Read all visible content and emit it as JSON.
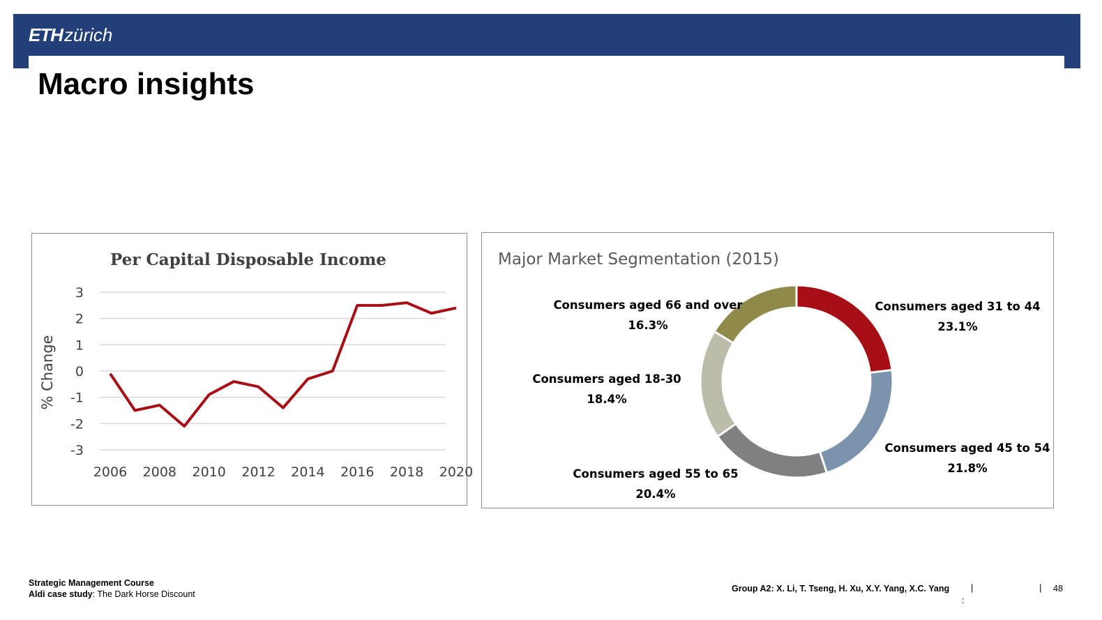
{
  "header": {
    "logo_bold": "ETH",
    "logo_light": "zürich",
    "brand_color": "#223f7a"
  },
  "page_title": "Macro insights",
  "chart_data": [
    {
      "type": "line",
      "title": "Per Capital Disposable Income",
      "xlabel": "",
      "ylabel": "% Change",
      "x": [
        2006,
        2007,
        2008,
        2009,
        2010,
        2011,
        2012,
        2013,
        2014,
        2015,
        2016,
        2017,
        2018,
        2019,
        2020
      ],
      "series": [
        {
          "values": [
            -0.1,
            -1.5,
            -1.3,
            -2.1,
            -0.9,
            -0.4,
            -0.6,
            -1.4,
            -0.3,
            0.0,
            2.5,
            2.5,
            2.6,
            2.2,
            2.4
          ],
          "color": "#a50f15"
        }
      ],
      "xticks": [
        "2006",
        "2008",
        "2010",
        "2012",
        "2014",
        "2016",
        "2018",
        "2020"
      ],
      "yticks": [
        "3",
        "2",
        "1",
        "0",
        "-1",
        "-2",
        "-3"
      ],
      "ylim": [
        -3,
        3
      ],
      "xlim": [
        2006,
        2020
      ],
      "grid": true
    },
    {
      "type": "pie",
      "title": "Major Market Segmentation (2015)",
      "donut": true,
      "slices": [
        {
          "label": "Consumers aged 31 to 44",
          "value": 23.1,
          "value_label": "23.1%",
          "color": "#a50f15"
        },
        {
          "label": "Consumers aged 45 to 54",
          "value": 21.8,
          "value_label": "21.8%",
          "color": "#7b93ad"
        },
        {
          "label": "Consumers aged 55 to 65",
          "value": 20.4,
          "value_label": "20.4%",
          "color": "#808080"
        },
        {
          "label": "Consumers aged 18-30",
          "value": 18.4,
          "value_label": "18.4%",
          "color": "#bdbcaa"
        },
        {
          "label": "Consumers aged 66 and over",
          "value": 16.3,
          "value_label": "16.3%",
          "color": "#8f8a4a"
        }
      ]
    }
  ],
  "footer": {
    "course": "Strategic Management Course",
    "case_label": "Aldi case study",
    "case_title": ": The Dark Horse Discount",
    "group": "Group A2: X. Li, T. Tseng, H. Xu, X.Y. Yang, X.C. Yang",
    "separator": "|",
    "colon": ":",
    "page_number": "48"
  }
}
